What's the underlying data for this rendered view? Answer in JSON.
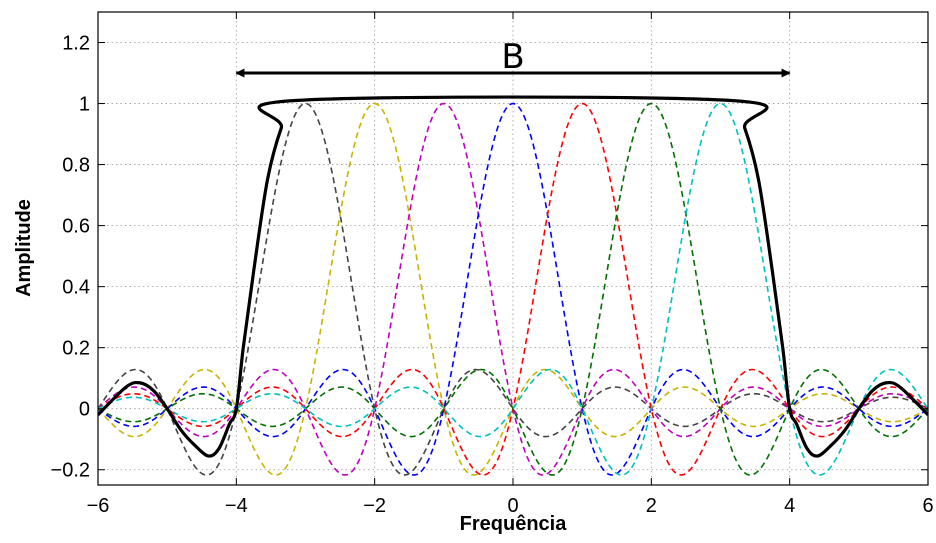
{
  "chart_data": {
    "type": "line",
    "title": "",
    "xlabel": "Frequência",
    "ylabel": "Amplitude",
    "xlim": [
      -6,
      6
    ],
    "ylim": [
      -0.25,
      1.3
    ],
    "xticks": [
      -6,
      -4,
      -2,
      0,
      2,
      4,
      6
    ],
    "yticks": [
      -0.2,
      0,
      0.2,
      0.4,
      0.6,
      0.8,
      1,
      1.2
    ],
    "grid": true,
    "sinc_centers": [
      -3,
      -2,
      -1,
      0,
      1,
      2,
      3
    ],
    "series_colors": [
      "#444444",
      "#c8b400",
      "#c000c0",
      "#0000ff",
      "#ff0000",
      "#007000",
      "#00c0c0"
    ],
    "envelope": {
      "color": "#000000",
      "points": [
        [
          -6.0,
          -0.02
        ],
        [
          -5.6,
          0.07
        ],
        [
          -5.4,
          0.085
        ],
        [
          -5.2,
          0.06
        ],
        [
          -5.0,
          0.0
        ],
        [
          -4.8,
          -0.07
        ],
        [
          -4.6,
          -0.12
        ],
        [
          -4.4,
          -0.155
        ],
        [
          -4.25,
          -0.13
        ],
        [
          -4.1,
          -0.05
        ],
        [
          -4.0,
          0.0
        ],
        [
          -3.9,
          0.2
        ],
        [
          -3.75,
          0.45
        ],
        [
          -3.55,
          0.75
        ],
        [
          -3.35,
          0.92
        ],
        [
          -3.15,
          1.01
        ],
        [
          3.15,
          1.01
        ],
        [
          3.35,
          0.92
        ],
        [
          3.55,
          0.75
        ],
        [
          3.75,
          0.45
        ],
        [
          3.9,
          0.2
        ],
        [
          4.0,
          0.0
        ],
        [
          4.1,
          -0.05
        ],
        [
          4.25,
          -0.13
        ],
        [
          4.4,
          -0.155
        ],
        [
          4.6,
          -0.12
        ],
        [
          4.8,
          -0.07
        ],
        [
          5.0,
          0.0
        ],
        [
          5.2,
          0.06
        ],
        [
          5.4,
          0.085
        ],
        [
          5.6,
          0.07
        ],
        [
          6.0,
          -0.02
        ]
      ]
    },
    "annotation": {
      "text": "B",
      "arrow_from": -4,
      "arrow_to": 4,
      "arrow_y": 1.1,
      "text_x": 0,
      "text_y": 1.15
    }
  }
}
